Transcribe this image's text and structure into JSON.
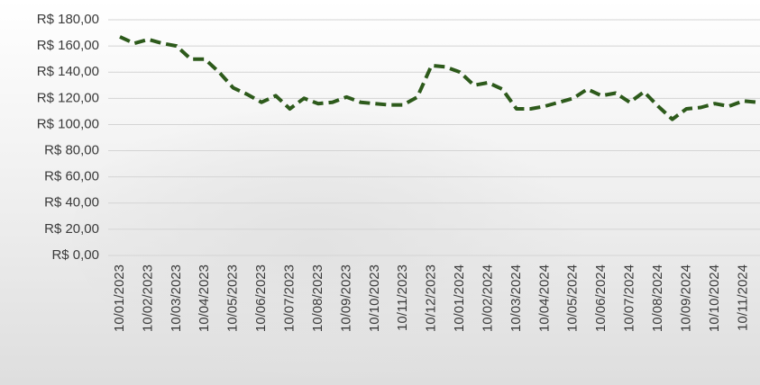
{
  "chart_data": {
    "type": "line",
    "categories": [
      "10/01/2023",
      null,
      "10/02/2023",
      null,
      "10/03/2023",
      null,
      "10/04/2023",
      null,
      "10/05/2023",
      null,
      "10/06/2023",
      null,
      "10/07/2023",
      null,
      "10/08/2023",
      null,
      "10/09/2023",
      null,
      "10/10/2023",
      null,
      "10/11/2023",
      null,
      "10/12/2023",
      null,
      "10/01/2024",
      null,
      "10/02/2024",
      null,
      "10/03/2024",
      null,
      "10/04/2024",
      null,
      "10/05/2024",
      null,
      "10/06/2024",
      null,
      "10/07/2024",
      null,
      "10/08/2024",
      null,
      "10/09/2024",
      null,
      "10/10/2024",
      null,
      "10/11/2024",
      null
    ],
    "values": [
      167,
      162,
      165,
      162,
      160,
      150,
      150,
      140,
      128,
      123,
      117,
      122,
      112,
      120,
      116,
      117,
      121,
      117,
      116,
      115,
      115,
      121,
      145,
      144,
      140,
      130,
      132,
      127,
      112,
      112,
      114,
      117,
      120,
      127,
      122,
      124,
      117,
      125,
      114,
      104,
      112,
      113,
      116,
      114,
      118,
      117
    ],
    "color": "#2d5a1b",
    "ylim": [
      0,
      180
    ],
    "yticks": [
      {
        "value": 0,
        "label": "R$ 0,00"
      },
      {
        "value": 20,
        "label": "R$ 20,00"
      },
      {
        "value": 40,
        "label": "R$ 40,00"
      },
      {
        "value": 60,
        "label": "R$ 60,00"
      },
      {
        "value": 80,
        "label": "R$ 80,00"
      },
      {
        "value": 100,
        "label": "R$ 100,00"
      },
      {
        "value": 120,
        "label": "R$ 120,00"
      },
      {
        "value": 140,
        "label": "R$ 140,00"
      },
      {
        "value": 160,
        "label": "R$ 160,00"
      },
      {
        "value": 180,
        "label": "R$ 180,00"
      }
    ],
    "grid": true
  }
}
